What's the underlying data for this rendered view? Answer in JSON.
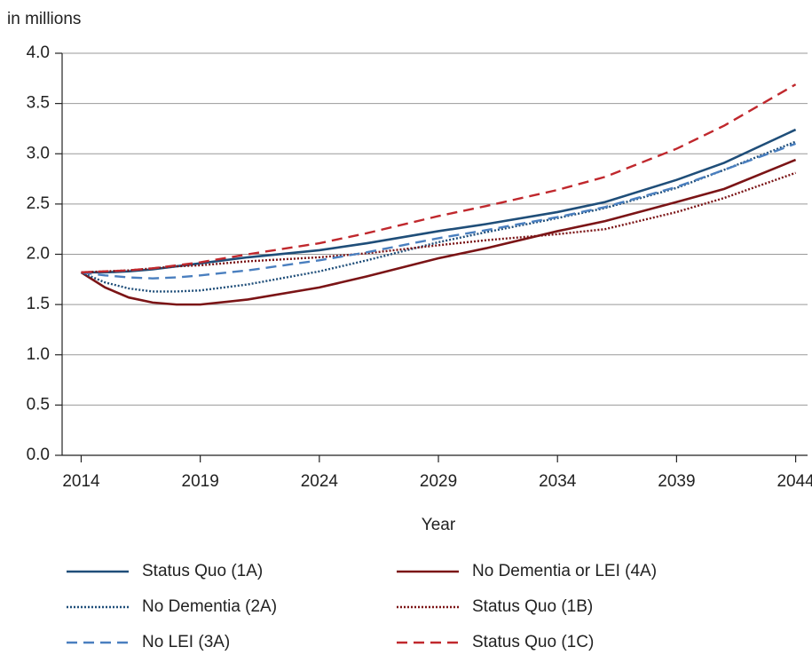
{
  "chart_data": {
    "type": "line",
    "y_unit_label": "in millions",
    "x_label": "Year",
    "x": [
      2014,
      2015,
      2016,
      2017,
      2018,
      2019,
      2021,
      2024,
      2026,
      2029,
      2031,
      2034,
      2036,
      2039,
      2041,
      2044
    ],
    "xlim": [
      2013.2,
      2044.5
    ],
    "xticks": [
      2014,
      2019,
      2024,
      2029,
      2034,
      2039,
      2044
    ],
    "ylim": [
      0,
      4
    ],
    "yticks": [
      {
        "value": 0,
        "label": "0.0"
      },
      {
        "value": 0.5,
        "label": "0.5"
      },
      {
        "value": 1,
        "label": "1.0"
      },
      {
        "value": 1.5,
        "label": "1.5"
      },
      {
        "value": 2,
        "label": "2.0"
      },
      {
        "value": 2.5,
        "label": "2.5"
      },
      {
        "value": 3,
        "label": "3.0"
      },
      {
        "value": 3.5,
        "label": "3.5"
      },
      {
        "value": 4,
        "label": "4.0"
      }
    ],
    "grid": true,
    "legend": "bottom",
    "series": [
      {
        "name": "Status Quo (1A)",
        "color": "#1f4e79",
        "dash": "solid",
        "values": [
          1.82,
          1.82,
          1.83,
          1.85,
          1.88,
          1.91,
          1.97,
          2.04,
          2.11,
          2.23,
          2.3,
          2.42,
          2.52,
          2.74,
          2.91,
          3.24
        ]
      },
      {
        "name": "No Dementia or LEI (4A)",
        "color": "#7b1416",
        "dash": "solid",
        "values": [
          1.82,
          1.67,
          1.57,
          1.52,
          1.5,
          1.5,
          1.55,
          1.67,
          1.78,
          1.96,
          2.06,
          2.23,
          2.33,
          2.52,
          2.65,
          2.94
        ]
      },
      {
        "name": "No Dementia (2A)",
        "color": "#1f4e79",
        "dash": "dotted",
        "values": [
          1.82,
          1.72,
          1.66,
          1.63,
          1.63,
          1.64,
          1.7,
          1.83,
          1.94,
          2.12,
          2.22,
          2.36,
          2.46,
          2.66,
          2.84,
          3.12
        ]
      },
      {
        "name": "Status Quo (1B)",
        "color": "#7b1416",
        "dash": "dotted",
        "values": [
          1.82,
          1.83,
          1.84,
          1.86,
          1.88,
          1.89,
          1.93,
          1.97,
          2.01,
          2.09,
          2.14,
          2.2,
          2.25,
          2.42,
          2.56,
          2.81
        ]
      },
      {
        "name": "No LEI (3A)",
        "color": "#4a7fbf",
        "dash": "dashed",
        "values": [
          1.82,
          1.79,
          1.77,
          1.76,
          1.77,
          1.79,
          1.84,
          1.94,
          2.02,
          2.16,
          2.24,
          2.37,
          2.47,
          2.67,
          2.84,
          3.1
        ]
      },
      {
        "name": "Status Quo (1C)",
        "color": "#c0282d",
        "dash": "dashed",
        "values": [
          1.82,
          1.83,
          1.84,
          1.86,
          1.89,
          1.92,
          2.0,
          2.11,
          2.21,
          2.38,
          2.48,
          2.64,
          2.77,
          3.05,
          3.28,
          3.69
        ]
      }
    ]
  }
}
